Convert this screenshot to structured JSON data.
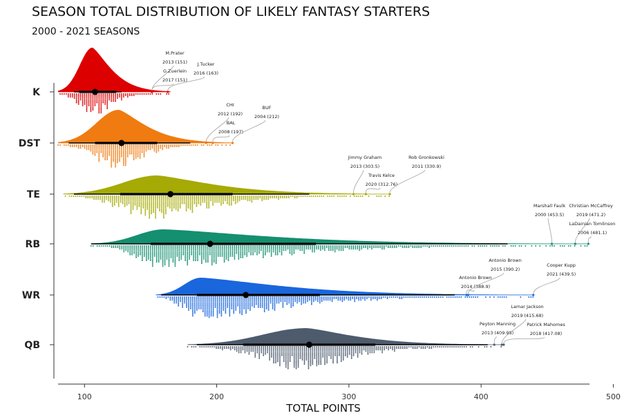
{
  "chart_data": {
    "type": "raincloud",
    "title": "SEASON TOTAL DISTRIBUTION OF LIKELY FANTASY STARTERS",
    "subtitle": "2000 - 2021 SEASONS",
    "xlabel": "TOTAL POINTS",
    "xlim": [
      80,
      482
    ],
    "xticks": [
      "100",
      "200",
      "300",
      "400",
      "500"
    ],
    "grid": false,
    "series": [
      {
        "name": "K",
        "color": "#dd0000",
        "min": 80,
        "max": 165,
        "q1": 96,
        "median": 108,
        "q3": 124,
        "box_left": 92,
        "box_right": 128,
        "mode": 106
      },
      {
        "name": "DST",
        "color": "#f07b10",
        "min": 80,
        "max": 212,
        "q1": 108,
        "median": 128,
        "q3": 155,
        "box_left": 88,
        "box_right": 180,
        "mode": 126
      },
      {
        "name": "TE",
        "color": "#a5aa04",
        "min": 84,
        "max": 331,
        "q1": 127,
        "median": 165,
        "q3": 212,
        "box_left": 92,
        "box_right": 270,
        "mode": 155
      },
      {
        "name": "RB",
        "color": "#148f6f",
        "min": 105,
        "max": 482,
        "q1": 150,
        "median": 195,
        "q3": 275,
        "box_left": 105,
        "box_right": 420,
        "mode": 160
      },
      {
        "name": "WR",
        "color": "#1a66dd",
        "min": 154,
        "max": 440,
        "q1": 185,
        "median": 222,
        "q3": 278,
        "box_left": 158,
        "box_right": 380,
        "mode": 188
      },
      {
        "name": "QB",
        "color": "#4d5b6d",
        "min": 178,
        "max": 418,
        "q1": 220,
        "median": 270,
        "q3": 320,
        "box_left": 185,
        "box_right": 405,
        "mode": 268
      }
    ],
    "annotations": [
      {
        "series": "K",
        "lines": [
          "M.Prater",
          "2013 (151)"
        ],
        "x": 151
      },
      {
        "series": "K",
        "lines": [
          "G.Zuerlein",
          "2017 (151)"
        ],
        "x": 151
      },
      {
        "series": "K",
        "lines": [
          "J.Tucker",
          "2016 (163)"
        ],
        "x": 163
      },
      {
        "series": "DST",
        "lines": [
          "CHI",
          "2012 (192)"
        ],
        "x": 192
      },
      {
        "series": "DST",
        "lines": [
          "BAL",
          "2008 (197)"
        ],
        "x": 197
      },
      {
        "series": "DST",
        "lines": [
          "BUF",
          "2004 (212)"
        ],
        "x": 212
      },
      {
        "series": "TE",
        "lines": [
          "Jimmy Graham",
          "2013 (303.5)"
        ],
        "x": 303.5
      },
      {
        "series": "TE",
        "lines": [
          "Travis Kelce",
          "2020 (312.76)"
        ],
        "x": 312.76
      },
      {
        "series": "TE",
        "lines": [
          "Rob Gronkowski",
          "2011 (330.9)"
        ],
        "x": 330.9
      },
      {
        "series": "RB",
        "lines": [
          "Marshall Faulk",
          "2000 (453.5)"
        ],
        "x": 453.5
      },
      {
        "series": "RB",
        "lines": [
          "Christian McCaffrey",
          "2019 (471.2)"
        ],
        "x": 471.2
      },
      {
        "series": "RB",
        "lines": [
          "LaDainian Tomlinson",
          "2006 (481.1)"
        ],
        "x": 481.1
      },
      {
        "series": "WR",
        "lines": [
          "Antonio Brown",
          "2014 (388.9)"
        ],
        "x": 388.9
      },
      {
        "series": "WR",
        "lines": [
          "Antonio Brown",
          "2015 (390.2)"
        ],
        "x": 390.2
      },
      {
        "series": "WR",
        "lines": [
          "Cooper Kupp",
          "2021 (439.5)"
        ],
        "x": 439.5
      },
      {
        "series": "QB",
        "lines": [
          "Peyton Manning",
          "2013 (409.98)"
        ],
        "x": 409.98
      },
      {
        "series": "QB",
        "lines": [
          "Lamar Jackson",
          "2019 (415.68)"
        ],
        "x": 415.68
      },
      {
        "series": "QB",
        "lines": [
          "Patrick Mahomes",
          "2018 (417.08)"
        ],
        "x": 417.08
      }
    ]
  }
}
